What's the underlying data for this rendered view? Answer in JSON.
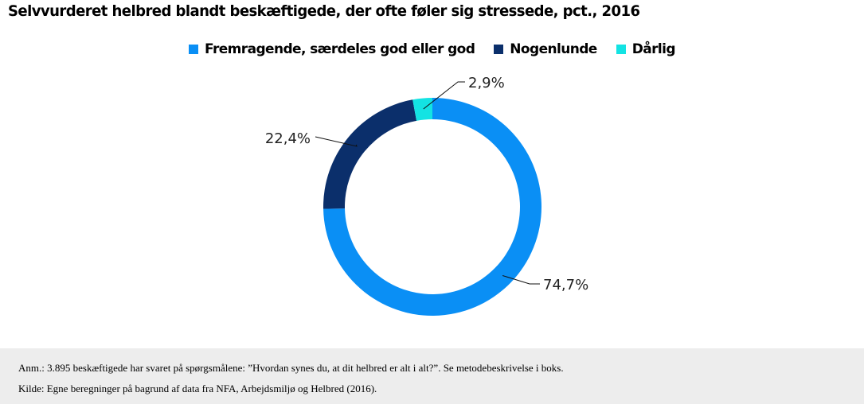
{
  "chart_data": {
    "type": "pie",
    "title": "Selvvurderet helbred blandt beskæftigede, der ofte føler sig stressede, pct., 2016",
    "categories": [
      "Fremragende, særdeles god eller god",
      "Nogenlunde",
      "Dårlig"
    ],
    "values": [
      74.7,
      22.4,
      2.9
    ],
    "value_labels": [
      "74,7%",
      "22,4%",
      "2,9%"
    ],
    "colors": [
      "#0a8ff5",
      "#0b2f6b",
      "#13e3e3"
    ],
    "style": "donut",
    "legend_position": "top"
  },
  "footer": {
    "note": "Anm.: 3.895 beskæftigede har svaret på spørgsmålene: ”Hvordan synes du, at dit helbred er alt i alt?”. Se metodebeskrivelse i boks.",
    "source": "Kilde: Egne beregninger på bagrund af data fra NFA, Arbejdsmiljø og Helbred (2016)."
  }
}
